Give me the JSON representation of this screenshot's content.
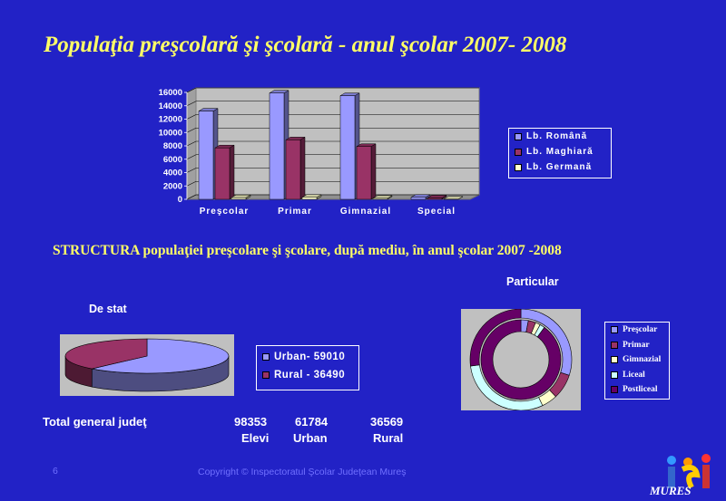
{
  "slide": {
    "title": "Populaţia preşcolară şi şcolară - anul şcolar 2007- 2008",
    "structure_title": "STRUCTURA populaţiei  preşcolare şi şcolare, după mediu, în  anul şcolar 2007 -2008",
    "page_number": "6",
    "copyright": "Copyright © Inspectoratul Şcolar Judeţean Mureş",
    "logo_text": "MURES"
  },
  "totals": {
    "label": "Total general judeţ",
    "values": [
      "98353",
      "61784",
      "36569"
    ],
    "captions": [
      "Elevi",
      "Urban",
      "Rural"
    ]
  },
  "chart_data": [
    {
      "type": "bar",
      "categories": [
        "Preşcolar",
        "Primar",
        "Gimnazial",
        "Special"
      ],
      "series": [
        {
          "name": "Lb. Română",
          "values": [
            13200,
            15900,
            15500,
            300
          ],
          "color": "#9999ff"
        },
        {
          "name": "Lb. Maghiară",
          "values": [
            7700,
            8900,
            7900,
            200
          ],
          "color": "#993366"
        },
        {
          "name": "Lb. Germană",
          "values": [
            250,
            300,
            150,
            20
          ],
          "color": "#ffffcc"
        }
      ],
      "yticks": [
        "0",
        "2000",
        "4000",
        "6000",
        "8000",
        "10000",
        "12000",
        "14000",
        "16000"
      ],
      "ylim": [
        0,
        16000
      ],
      "grid": true,
      "legend": "right"
    },
    {
      "type": "pie",
      "title": "De stat",
      "labels": [
        "Urban- 59010",
        "Rural - 36490"
      ],
      "values": [
        59010,
        36490
      ],
      "colors": [
        "#9999ff",
        "#993366"
      ],
      "legend": "right"
    },
    {
      "type": "pie",
      "variant": "doughnut",
      "title": "Particular",
      "labels": [
        "Preşcolar",
        "Primar",
        "Gimnazial",
        "Liceal",
        "Postliceal"
      ],
      "rings": [
        {
          "values": [
            30,
            8,
            5,
            30,
            27
          ]
        },
        {
          "values": [
            3,
            3,
            2,
            2,
            90
          ]
        }
      ],
      "colors": [
        "#9999ff",
        "#993366",
        "#ffffcc",
        "#ccffff",
        "#660066"
      ],
      "legend": "right"
    }
  ]
}
